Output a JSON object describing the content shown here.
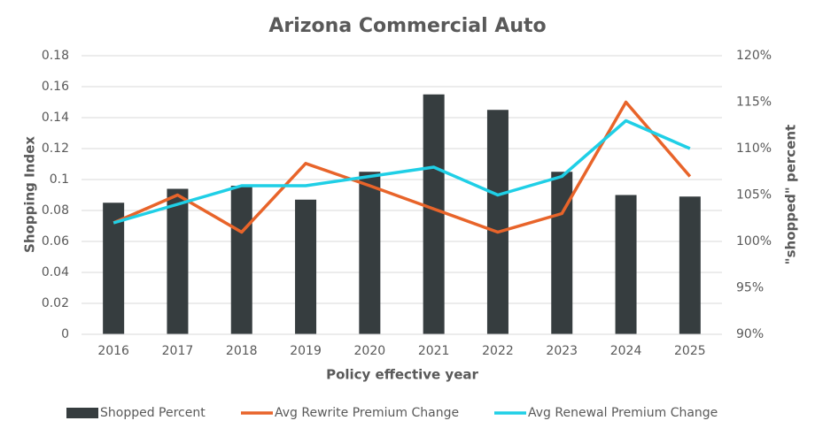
{
  "chart_data": {
    "type": "bar",
    "title": "Arizona Commercial Auto",
    "x_label": "Policy effective year",
    "y_label": "Shopping Index",
    "y2_label": "\"shopped\" percent",
    "categories": [
      "2016",
      "2017",
      "2018",
      "2019",
      "2020",
      "2021",
      "2022",
      "2023",
      "2024",
      "2025"
    ],
    "series": [
      {
        "name": "Shopped Percent",
        "type": "bar",
        "color": "#363d3f",
        "values": [
          0.085,
          0.094,
          0.096,
          0.087,
          0.105,
          0.155,
          0.145,
          0.105,
          0.09,
          0.089
        ]
      },
      {
        "name": "Avg Rewrite Premium Change",
        "type": "line",
        "axis": "y2",
        "color": "#e8642a",
        "values": [
          102,
          105,
          101,
          108.4,
          106,
          103.5,
          101,
          103,
          115,
          107
        ]
      },
      {
        "name": "Avg Renewal Premium Change",
        "type": "line",
        "axis": "y2",
        "color": "#1fcfe6",
        "values": [
          102,
          104,
          106,
          106,
          107,
          108,
          105,
          107,
          113,
          110
        ]
      }
    ],
    "ylim": [
      0,
      0.18
    ],
    "yticks": [
      0,
      0.02,
      0.04,
      0.06,
      0.08,
      0.1,
      0.12,
      0.14,
      0.16,
      0.18
    ],
    "y2lim": [
      90,
      120
    ],
    "y2ticks": [
      {
        "value": 90,
        "label": "90%"
      },
      {
        "value": 95,
        "label": "95%"
      },
      {
        "value": 100,
        "label": "100%"
      },
      {
        "value": 105,
        "label": "105%"
      },
      {
        "value": 110,
        "label": "110%"
      },
      {
        "value": 115,
        "label": "115%"
      },
      {
        "value": 120,
        "label": "120%"
      }
    ],
    "grid": true,
    "legend": "bottom"
  }
}
